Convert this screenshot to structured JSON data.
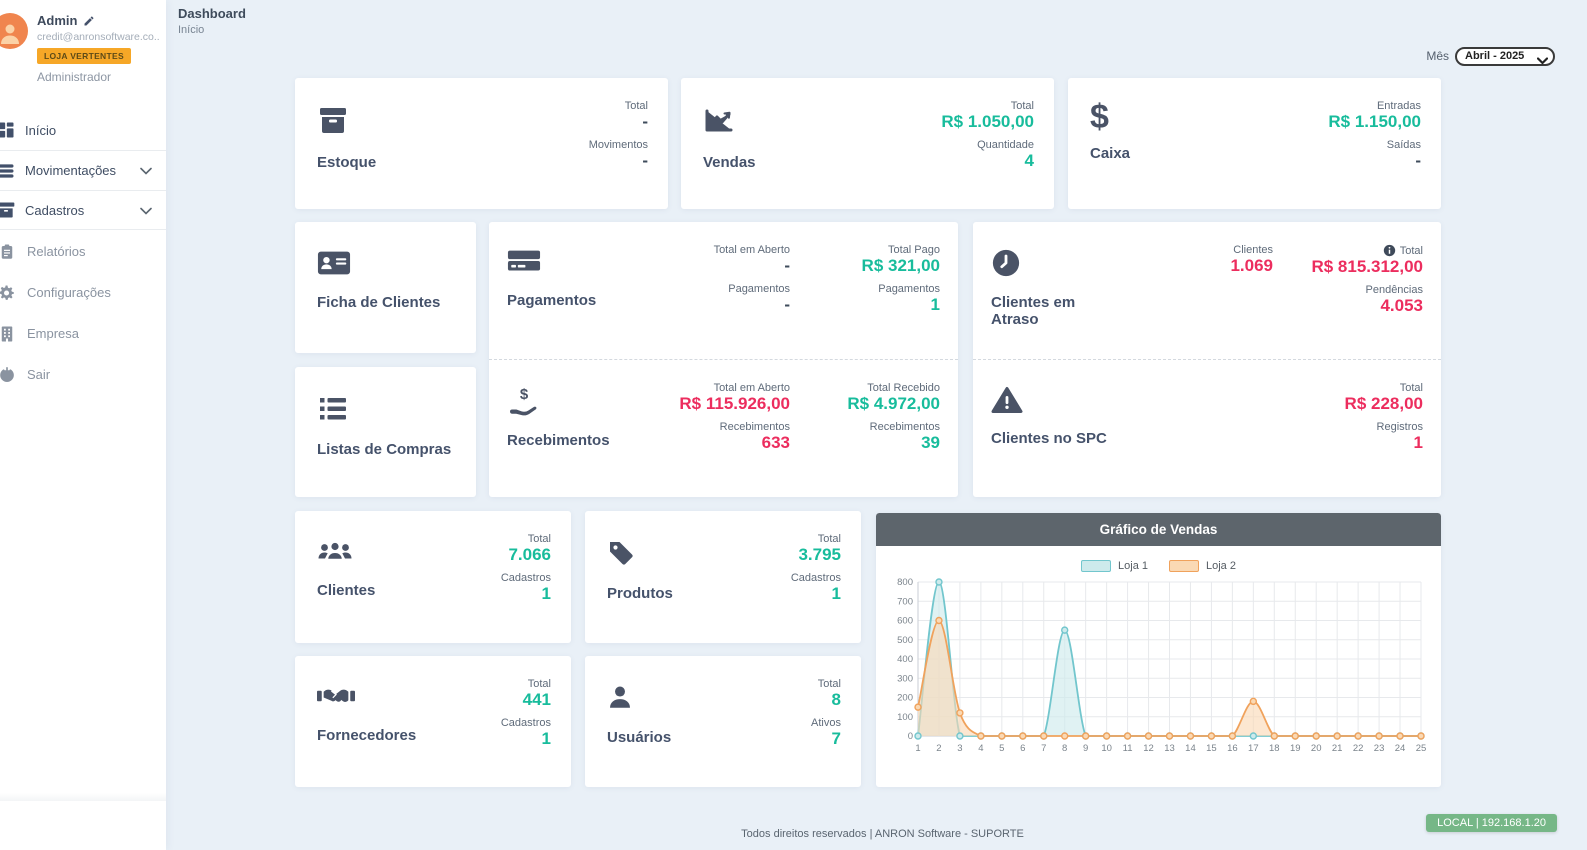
{
  "colors": {
    "accent_green": "#18bc9c",
    "accent_red": "#ec2d5e",
    "icon_dark": "#4a5366",
    "chart_header_bg": "#5d656c",
    "store_badge_bg": "#f6a727",
    "env_badge_bg": "#76b787",
    "main_bg": "#e9f0f7"
  },
  "icons": {
    "dollar_glyph": "$"
  },
  "user": {
    "name": "Admin",
    "email": "credit@anronsoftware.co...",
    "store_badge": "LOJA VERTENTES",
    "role": "Administrador"
  },
  "sidebar": {
    "items": [
      {
        "label": "Início",
        "icon": "grid-icon"
      },
      {
        "label": "Movimentações",
        "icon": "layers-icon",
        "chevron": true
      },
      {
        "label": "Cadastros",
        "icon": "archive-icon",
        "chevron": true
      },
      {
        "label": "Relatórios",
        "icon": "clipboard-icon"
      },
      {
        "label": "Configurações",
        "icon": "gear-icon"
      },
      {
        "label": "Empresa",
        "icon": "building-icon"
      },
      {
        "label": "Sair",
        "icon": "power-icon"
      }
    ]
  },
  "breadcrumb": {
    "title": "Dashboard",
    "subtitle": "Início"
  },
  "month_filter": {
    "label": "Mês",
    "value": "Abril - 2025"
  },
  "cards": {
    "estoque": {
      "title": "Estoque",
      "stats": [
        {
          "label": "Total",
          "value": "-"
        },
        {
          "label": "Movimentos",
          "value": "-"
        }
      ]
    },
    "vendas": {
      "title": "Vendas",
      "stats": [
        {
          "label": "Total",
          "value": "R$ 1.050,00"
        },
        {
          "label": "Quantidade",
          "value": "4"
        }
      ]
    },
    "caixa": {
      "title": "Caixa",
      "stats": [
        {
          "label": "Entradas",
          "value": "R$ 1.150,00"
        },
        {
          "label": "Saídas",
          "value": "-"
        }
      ]
    },
    "ficha_clientes": {
      "title": "Ficha de Clientes"
    },
    "listas_compras": {
      "title": "Listas de Compras"
    },
    "pagamentos": {
      "title": "Pagamentos",
      "open": {
        "label": "Total em Aberto",
        "value": "-"
      },
      "open_count": {
        "label": "Pagamentos",
        "value": "-"
      },
      "paid": {
        "label": "Total Pago",
        "value": "R$ 321,00"
      },
      "paid_count": {
        "label": "Pagamentos",
        "value": "1"
      }
    },
    "recebimentos": {
      "title": "Recebimentos",
      "open": {
        "label": "Total em Aberto",
        "value": "R$ 115.926,00"
      },
      "open_count": {
        "label": "Recebimentos",
        "value": "633"
      },
      "received": {
        "label": "Total Recebido",
        "value": "R$ 4.972,00"
      },
      "received_count": {
        "label": "Recebimentos",
        "value": "39"
      }
    },
    "clientes_atraso": {
      "title": "Clientes em Atraso",
      "clients": {
        "label": "Clientes",
        "value": "1.069"
      },
      "total": {
        "label": "Total",
        "value": "R$ 815.312,00"
      },
      "pendencias": {
        "label": "Pendências",
        "value": "4.053"
      }
    },
    "clientes_spc": {
      "title": "Clientes no SPC",
      "total": {
        "label": "Total",
        "value": "R$ 228,00"
      },
      "registros": {
        "label": "Registros",
        "value": "1"
      }
    },
    "clientes": {
      "title": "Clientes",
      "stats": [
        {
          "label": "Total",
          "value": "7.066"
        },
        {
          "label": "Cadastros",
          "value": "1"
        }
      ]
    },
    "produtos": {
      "title": "Produtos",
      "stats": [
        {
          "label": "Total",
          "value": "3.795"
        },
        {
          "label": "Cadastros",
          "value": "1"
        }
      ]
    },
    "fornecedores": {
      "title": "Fornecedores",
      "stats": [
        {
          "label": "Total",
          "value": "441"
        },
        {
          "label": "Cadastros",
          "value": "1"
        }
      ]
    },
    "usuarios": {
      "title": "Usuários",
      "stats": [
        {
          "label": "Total",
          "value": "8"
        },
        {
          "label": "Ativos",
          "value": "7"
        }
      ]
    }
  },
  "chart_data": {
    "type": "area",
    "title": "Gráfico de Vendas",
    "x": [
      1,
      2,
      3,
      4,
      5,
      6,
      7,
      8,
      9,
      10,
      11,
      12,
      13,
      14,
      15,
      16,
      17,
      18,
      19,
      20,
      21,
      22,
      23,
      24,
      25
    ],
    "series": [
      {
        "name": "Loja 1",
        "color": "#72c6cd",
        "fill": "#cdeaec",
        "values": [
          0,
          800,
          0,
          0,
          0,
          0,
          0,
          550,
          0,
          0,
          0,
          0,
          0,
          0,
          0,
          0,
          0,
          0,
          0,
          0,
          0,
          0,
          0,
          0,
          0
        ]
      },
      {
        "name": "Loja 2",
        "color": "#f0a25c",
        "fill": "#fad9b4",
        "values": [
          150,
          600,
          120,
          0,
          0,
          0,
          0,
          0,
          0,
          0,
          0,
          0,
          0,
          0,
          0,
          0,
          180,
          0,
          0,
          0,
          0,
          0,
          0,
          0,
          0
        ]
      }
    ],
    "ylim": [
      0,
      800
    ],
    "yticks": [
      0,
      100,
      200,
      300,
      400,
      500,
      600,
      700,
      800
    ],
    "xlabel": "",
    "ylabel": "",
    "grid": true,
    "legend_position": "top"
  },
  "footer": {
    "copyright": "Todos direitos reservados | ANRON Software - SUPORTE",
    "env_badge": "LOCAL | 192.168.1.20"
  }
}
